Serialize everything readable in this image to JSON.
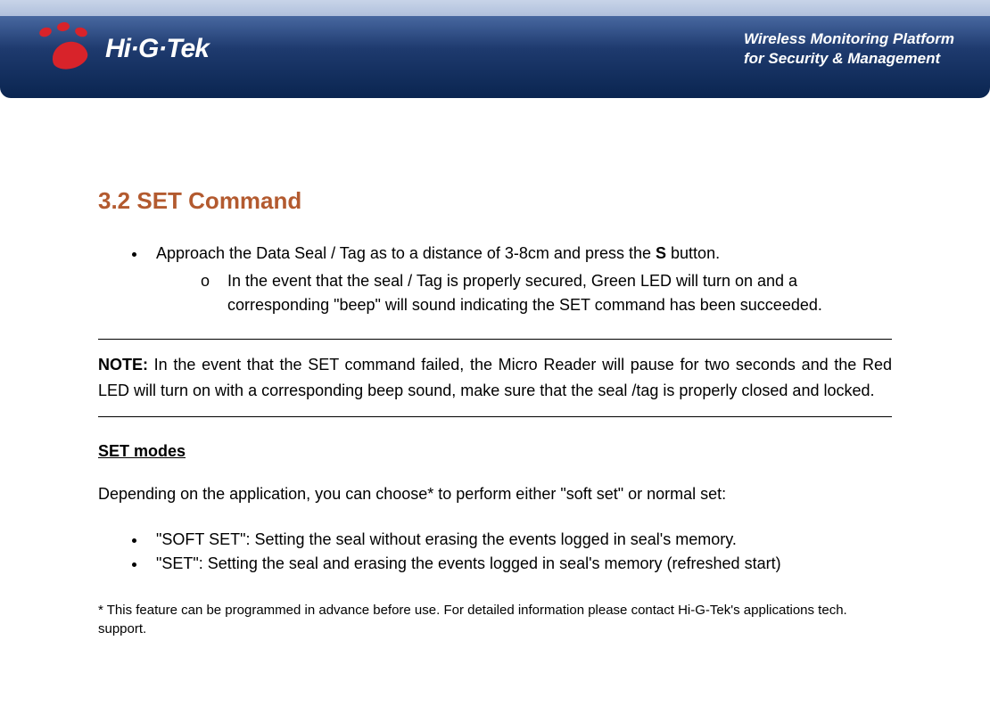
{
  "header": {
    "logo_text": "Hi·G·Tek",
    "tagline_line1": "Wireless Monitoring Platform",
    "tagline_line2": "for Security & Management",
    "colors": {
      "banner_gradient_top": "#5a7cb3",
      "banner_gradient_bottom": "#0a2550",
      "logo_red": "#d8232a",
      "text_white": "#ffffff"
    }
  },
  "section": {
    "heading": "3.2 SET Command",
    "heading_color": "#b35a2f",
    "bullet1_prefix": "Approach the Data Seal / Tag as to a distance of 3-8cm and press the ",
    "bullet1_bold": "S",
    "bullet1_suffix": " button.",
    "sub_bullet1": "In the event that the seal / Tag is properly secured, Green LED will turn on and a corresponding \"beep\" will sound indicating the SET command has been succeeded.",
    "note_label": "NOTE:",
    "note_text": " In the event that the SET command failed, the Micro Reader will pause for two seconds and the Red LED will turn on with a corresponding beep sound, make sure that the seal /tag is properly closed and locked.",
    "subheading": "SET modes",
    "intro_text": "Depending on the application, you can choose* to perform either \"soft set\" or normal set:",
    "mode1": "\"SOFT SET\": Setting the seal without erasing the events logged in seal's memory.",
    "mode2": "\"SET\": Setting the seal and erasing the events logged in seal's memory (refreshed start)",
    "footnote": "* This feature can be programmed in advance before use. For detailed information please contact Hi-G-Tek's applications tech. support."
  }
}
